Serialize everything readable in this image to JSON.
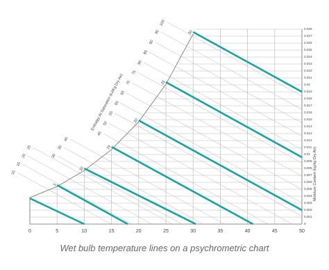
{
  "chart_data": {
    "type": "psychrometric",
    "caption": "Wet bulb temperature lines on a psychrometric chart",
    "y_label": "Moisture Content (kg/kg Dry Air)",
    "enthalpy_label": "Enthalpy At Saturation (kJ/Kg Dry Air)",
    "xlim": [
      0,
      50
    ],
    "xticks": [
      0,
      5,
      10,
      15,
      20,
      25,
      30,
      35,
      40,
      45,
      50
    ],
    "ylim": [
      0,
      0.028
    ],
    "yticks": [
      0,
      0.001,
      0.002,
      0.003,
      0.004,
      0.005,
      0.006,
      0.007,
      0.008,
      0.009,
      0.01,
      0.011,
      0.012,
      0.013,
      0.014,
      0.015,
      0.016,
      0.017,
      0.018,
      0.019,
      0.02,
      0.021,
      0.022,
      0.023,
      0.024,
      0.025,
      0.026,
      0.027,
      0.028
    ],
    "saturation": {
      "color": "#8a8a8a",
      "x": [
        0,
        5,
        10,
        15,
        20,
        25,
        30
      ],
      "values": [
        0.0038,
        0.0054,
        0.0077,
        0.0107,
        0.0147,
        0.0201,
        0.0273
      ]
    },
    "wet_bulb_lines": {
      "color": "#17a2a4",
      "lines": [
        {
          "label": null,
          "x": [
            0,
            10
          ],
          "values": [
            0.0037,
            0
          ]
        },
        {
          "label": "5",
          "x": [
            5,
            18
          ],
          "values": [
            0.0056,
            0
          ]
        },
        {
          "label": "10",
          "x": [
            10,
            30.5
          ],
          "values": [
            0.008,
            0
          ]
        },
        {
          "label": "15",
          "x": [
            15,
            41
          ],
          "values": [
            0.0111,
            0
          ]
        },
        {
          "label": "20",
          "x": [
            20,
            50
          ],
          "values": [
            0.0149,
            0.002
          ]
        },
        {
          "label": "25",
          "x": [
            25,
            50
          ],
          "values": [
            0.0204,
            0.0096
          ]
        },
        {
          "label": "30",
          "x": [
            30,
            50
          ],
          "values": [
            0.0276,
            0.019
          ]
        }
      ]
    },
    "enthalpy_ticks": [
      10,
      15,
      20,
      25,
      30,
      35,
      40,
      45,
      50,
      55,
      60,
      65,
      70,
      75,
      80,
      85,
      90,
      95,
      100
    ]
  }
}
